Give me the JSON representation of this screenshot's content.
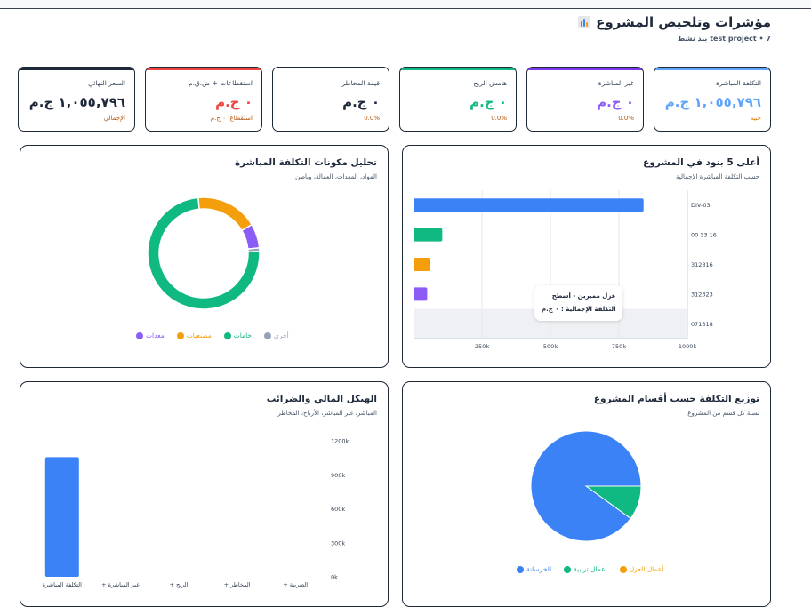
{
  "header": {
    "title": "مؤشرات وتلخيص المشروع",
    "subtitle": "test project • 7 بند نشط"
  },
  "kpis": [
    {
      "label": "التكلفة المباشرة",
      "value": "١,٠٥٥,٧٩٦ ج.م",
      "footer": "حبيه",
      "color": "#60a5fa",
      "value_color": "#60a5fa",
      "footer_color": "#d97706"
    },
    {
      "label": "غير المباشرة",
      "value": "٠ ج.م",
      "footer": "0.0%",
      "color": "#7c3aed",
      "value_color": "#8b5cf6",
      "footer_color": "#b45309"
    },
    {
      "label": "هامش الربح",
      "value": "٠ ج.م",
      "footer": "0.0%",
      "color": "#10b981",
      "value_color": "#10b981",
      "footer_color": "#b45309"
    },
    {
      "label": "قيمة المخاطر",
      "value": "٠ ج.م",
      "footer": "0.0%",
      "color": "#ffffff",
      "value_color": "#1e293b",
      "footer_color": "#b45309"
    },
    {
      "label": "استقطاعات + ض.ق.م",
      "value": "٠ ج.م",
      "footer": "استقطاع: ٠ ج.م",
      "color": "#ef4444",
      "value_color": "#ef4444",
      "footer_color": "#b45309"
    },
    {
      "label": "السعر النهائي",
      "value": "١,٠٥٥,٧٩٦ ج.م",
      "footer": "الإجمالي",
      "color": "#1e293b",
      "value_color": "#1e293b",
      "footer_color": "#b45309"
    }
  ],
  "top_items": {
    "title": "أعلى 5 بنود في المشروع",
    "subtitle": "حسب التكلفة المباشرة الإجمالية",
    "tooltip_title": "عزل ممبرين - أسطح",
    "tooltip_value": "التكلفة الإجمالية : ٠ ج.م",
    "chart_data": {
      "type": "bar",
      "orientation": "horizontal",
      "categories": [
        "DIV-03",
        "00 33 16",
        "312316",
        "312323",
        "071318"
      ],
      "values": [
        840000,
        105000,
        60000,
        50000,
        0
      ],
      "colors": [
        "#3b82f6",
        "#10b981",
        "#f59e0b",
        "#8b5cf6",
        "#ef4444"
      ],
      "xlim": [
        0,
        1000000
      ],
      "xticks": [
        "250k",
        "500k",
        "750k",
        "1000k"
      ],
      "grid": true
    }
  },
  "direct_cost": {
    "title": "تحليل مكونات التكلفة المباشرة",
    "subtitle": "المواد، المعدات، العمالة، وباطن",
    "chart_data": {
      "type": "pie",
      "donut": true,
      "labels": [
        "خامات",
        "مصنعيات",
        "معدات",
        "أخرى"
      ],
      "values": [
        74,
        18,
        7,
        1
      ],
      "colors": [
        "#10b981",
        "#f59e0b",
        "#8b5cf6",
        "#94a3b8"
      ]
    }
  },
  "sections": {
    "title": "توزيع التكلفة حسب أقسام المشروع",
    "subtitle": "نسبة كل قسم من المشروع",
    "chart_data": {
      "type": "pie",
      "labels": [
        "الخرسانة",
        "أعمال ترابية",
        "أعمال العزل"
      ],
      "values": [
        90,
        10,
        0
      ],
      "colors": [
        "#3b82f6",
        "#10b981",
        "#f59e0b"
      ]
    }
  },
  "financial": {
    "title": "الهيكل المالي والضرائب",
    "subtitle": "المباشر، غير المباشر، الأرباح، المخاطر",
    "chart_data": {
      "type": "bar",
      "categories": [
        "التكلفة المباشرة",
        "غير المباشرة +",
        "الربح +",
        "المخاطر +",
        "الضريبة +"
      ],
      "values": [
        1055796,
        0,
        0,
        0,
        0
      ],
      "color": "#3b82f6",
      "ylim": [
        0,
        1200000
      ],
      "yticks": [
        "0k",
        "300k",
        "600k",
        "900k",
        "1200k"
      ]
    }
  }
}
